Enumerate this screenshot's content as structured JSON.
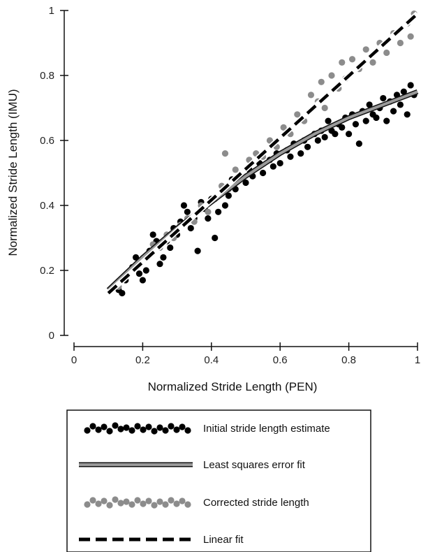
{
  "chart_data": {
    "type": "scatter",
    "xlabel": "Normalized Stride Length (PEN)",
    "ylabel": "Normalized Stride Length (IMU)",
    "xlim": [
      0,
      1
    ],
    "ylim": [
      0,
      1
    ],
    "x_ticks": [
      "0",
      "0.2",
      "0.4",
      "0.6",
      "0.8",
      "1"
    ],
    "y_ticks": [
      "0",
      "0.2",
      "0.4",
      "0.6",
      "0.8",
      "1"
    ],
    "grid": false,
    "legend_position": "bottom",
    "series": [
      {
        "name": "Initial stride length estimate",
        "kind": "points",
        "color": "#000000",
        "points": [
          [
            0.13,
            0.14
          ],
          [
            0.14,
            0.13
          ],
          [
            0.15,
            0.17
          ],
          [
            0.16,
            0.19
          ],
          [
            0.17,
            0.21
          ],
          [
            0.18,
            0.24
          ],
          [
            0.19,
            0.19
          ],
          [
            0.2,
            0.17
          ],
          [
            0.21,
            0.2
          ],
          [
            0.22,
            0.26
          ],
          [
            0.23,
            0.31
          ],
          [
            0.24,
            0.29
          ],
          [
            0.25,
            0.22
          ],
          [
            0.26,
            0.24
          ],
          [
            0.27,
            0.29
          ],
          [
            0.28,
            0.27
          ],
          [
            0.29,
            0.33
          ],
          [
            0.3,
            0.31
          ],
          [
            0.31,
            0.35
          ],
          [
            0.32,
            0.4
          ],
          [
            0.33,
            0.38
          ],
          [
            0.34,
            0.33
          ],
          [
            0.35,
            0.36
          ],
          [
            0.36,
            0.26
          ],
          [
            0.37,
            0.41
          ],
          [
            0.38,
            0.39
          ],
          [
            0.39,
            0.36
          ],
          [
            0.4,
            0.42
          ],
          [
            0.41,
            0.3
          ],
          [
            0.42,
            0.38
          ],
          [
            0.43,
            0.44
          ],
          [
            0.44,
            0.4
          ],
          [
            0.45,
            0.43
          ],
          [
            0.46,
            0.48
          ],
          [
            0.47,
            0.45
          ],
          [
            0.48,
            0.49
          ],
          [
            0.5,
            0.47
          ],
          [
            0.51,
            0.51
          ],
          [
            0.52,
            0.49
          ],
          [
            0.54,
            0.53
          ],
          [
            0.55,
            0.5
          ],
          [
            0.57,
            0.54
          ],
          [
            0.58,
            0.52
          ],
          [
            0.59,
            0.56
          ],
          [
            0.6,
            0.53
          ],
          [
            0.62,
            0.57
          ],
          [
            0.63,
            0.55
          ],
          [
            0.64,
            0.59
          ],
          [
            0.66,
            0.56
          ],
          [
            0.67,
            0.6
          ],
          [
            0.68,
            0.58
          ],
          [
            0.7,
            0.62
          ],
          [
            0.71,
            0.6
          ],
          [
            0.72,
            0.63
          ],
          [
            0.73,
            0.61
          ],
          [
            0.74,
            0.66
          ],
          [
            0.75,
            0.63
          ],
          [
            0.76,
            0.62
          ],
          [
            0.77,
            0.65
          ],
          [
            0.78,
            0.64
          ],
          [
            0.79,
            0.67
          ],
          [
            0.8,
            0.62
          ],
          [
            0.81,
            0.68
          ],
          [
            0.82,
            0.65
          ],
          [
            0.83,
            0.59
          ],
          [
            0.84,
            0.69
          ],
          [
            0.85,
            0.66
          ],
          [
            0.86,
            0.71
          ],
          [
            0.87,
            0.68
          ],
          [
            0.88,
            0.67
          ],
          [
            0.89,
            0.7
          ],
          [
            0.9,
            0.73
          ],
          [
            0.91,
            0.66
          ],
          [
            0.92,
            0.72
          ],
          [
            0.93,
            0.69
          ],
          [
            0.94,
            0.74
          ],
          [
            0.95,
            0.71
          ],
          [
            0.96,
            0.75
          ],
          [
            0.97,
            0.68
          ],
          [
            0.98,
            0.77
          ],
          [
            0.99,
            0.74
          ]
        ]
      },
      {
        "name": "Least squares error fit",
        "kind": "line",
        "color": "#9a9a9a",
        "points": [
          [
            0.1,
            0.14
          ],
          [
            0.2,
            0.24
          ],
          [
            0.3,
            0.33
          ],
          [
            0.4,
            0.41
          ],
          [
            0.5,
            0.49
          ],
          [
            0.6,
            0.56
          ],
          [
            0.7,
            0.62
          ],
          [
            0.8,
            0.67
          ],
          [
            0.9,
            0.71
          ],
          [
            1.0,
            0.75
          ]
        ]
      },
      {
        "name": "Corrected stride length",
        "kind": "points",
        "color": "#8c8c8c",
        "points": [
          [
            0.13,
            0.15
          ],
          [
            0.15,
            0.18
          ],
          [
            0.17,
            0.2
          ],
          [
            0.19,
            0.22
          ],
          [
            0.21,
            0.24
          ],
          [
            0.23,
            0.28
          ],
          [
            0.25,
            0.27
          ],
          [
            0.27,
            0.31
          ],
          [
            0.29,
            0.3
          ],
          [
            0.31,
            0.34
          ],
          [
            0.33,
            0.36
          ],
          [
            0.35,
            0.35
          ],
          [
            0.37,
            0.4
          ],
          [
            0.39,
            0.38
          ],
          [
            0.41,
            0.42
          ],
          [
            0.43,
            0.46
          ],
          [
            0.44,
            0.56
          ],
          [
            0.45,
            0.45
          ],
          [
            0.47,
            0.51
          ],
          [
            0.49,
            0.5
          ],
          [
            0.51,
            0.54
          ],
          [
            0.53,
            0.56
          ],
          [
            0.55,
            0.55
          ],
          [
            0.57,
            0.6
          ],
          [
            0.59,
            0.58
          ],
          [
            0.61,
            0.64
          ],
          [
            0.63,
            0.62
          ],
          [
            0.65,
            0.68
          ],
          [
            0.67,
            0.66
          ],
          [
            0.69,
            0.74
          ],
          [
            0.71,
            0.72
          ],
          [
            0.72,
            0.78
          ],
          [
            0.73,
            0.7
          ],
          [
            0.75,
            0.8
          ],
          [
            0.77,
            0.76
          ],
          [
            0.78,
            0.84
          ],
          [
            0.79,
            0.79
          ],
          [
            0.81,
            0.85
          ],
          [
            0.83,
            0.82
          ],
          [
            0.85,
            0.88
          ],
          [
            0.87,
            0.84
          ],
          [
            0.89,
            0.9
          ],
          [
            0.91,
            0.87
          ],
          [
            0.93,
            0.93
          ],
          [
            0.95,
            0.9
          ],
          [
            0.97,
            0.96
          ],
          [
            0.98,
            0.92
          ],
          [
            0.99,
            0.99
          ]
        ]
      },
      {
        "name": "Linear fit",
        "kind": "line",
        "color": "#000000",
        "points": [
          [
            0.1,
            0.13
          ],
          [
            1.0,
            0.99
          ]
        ]
      }
    ]
  }
}
